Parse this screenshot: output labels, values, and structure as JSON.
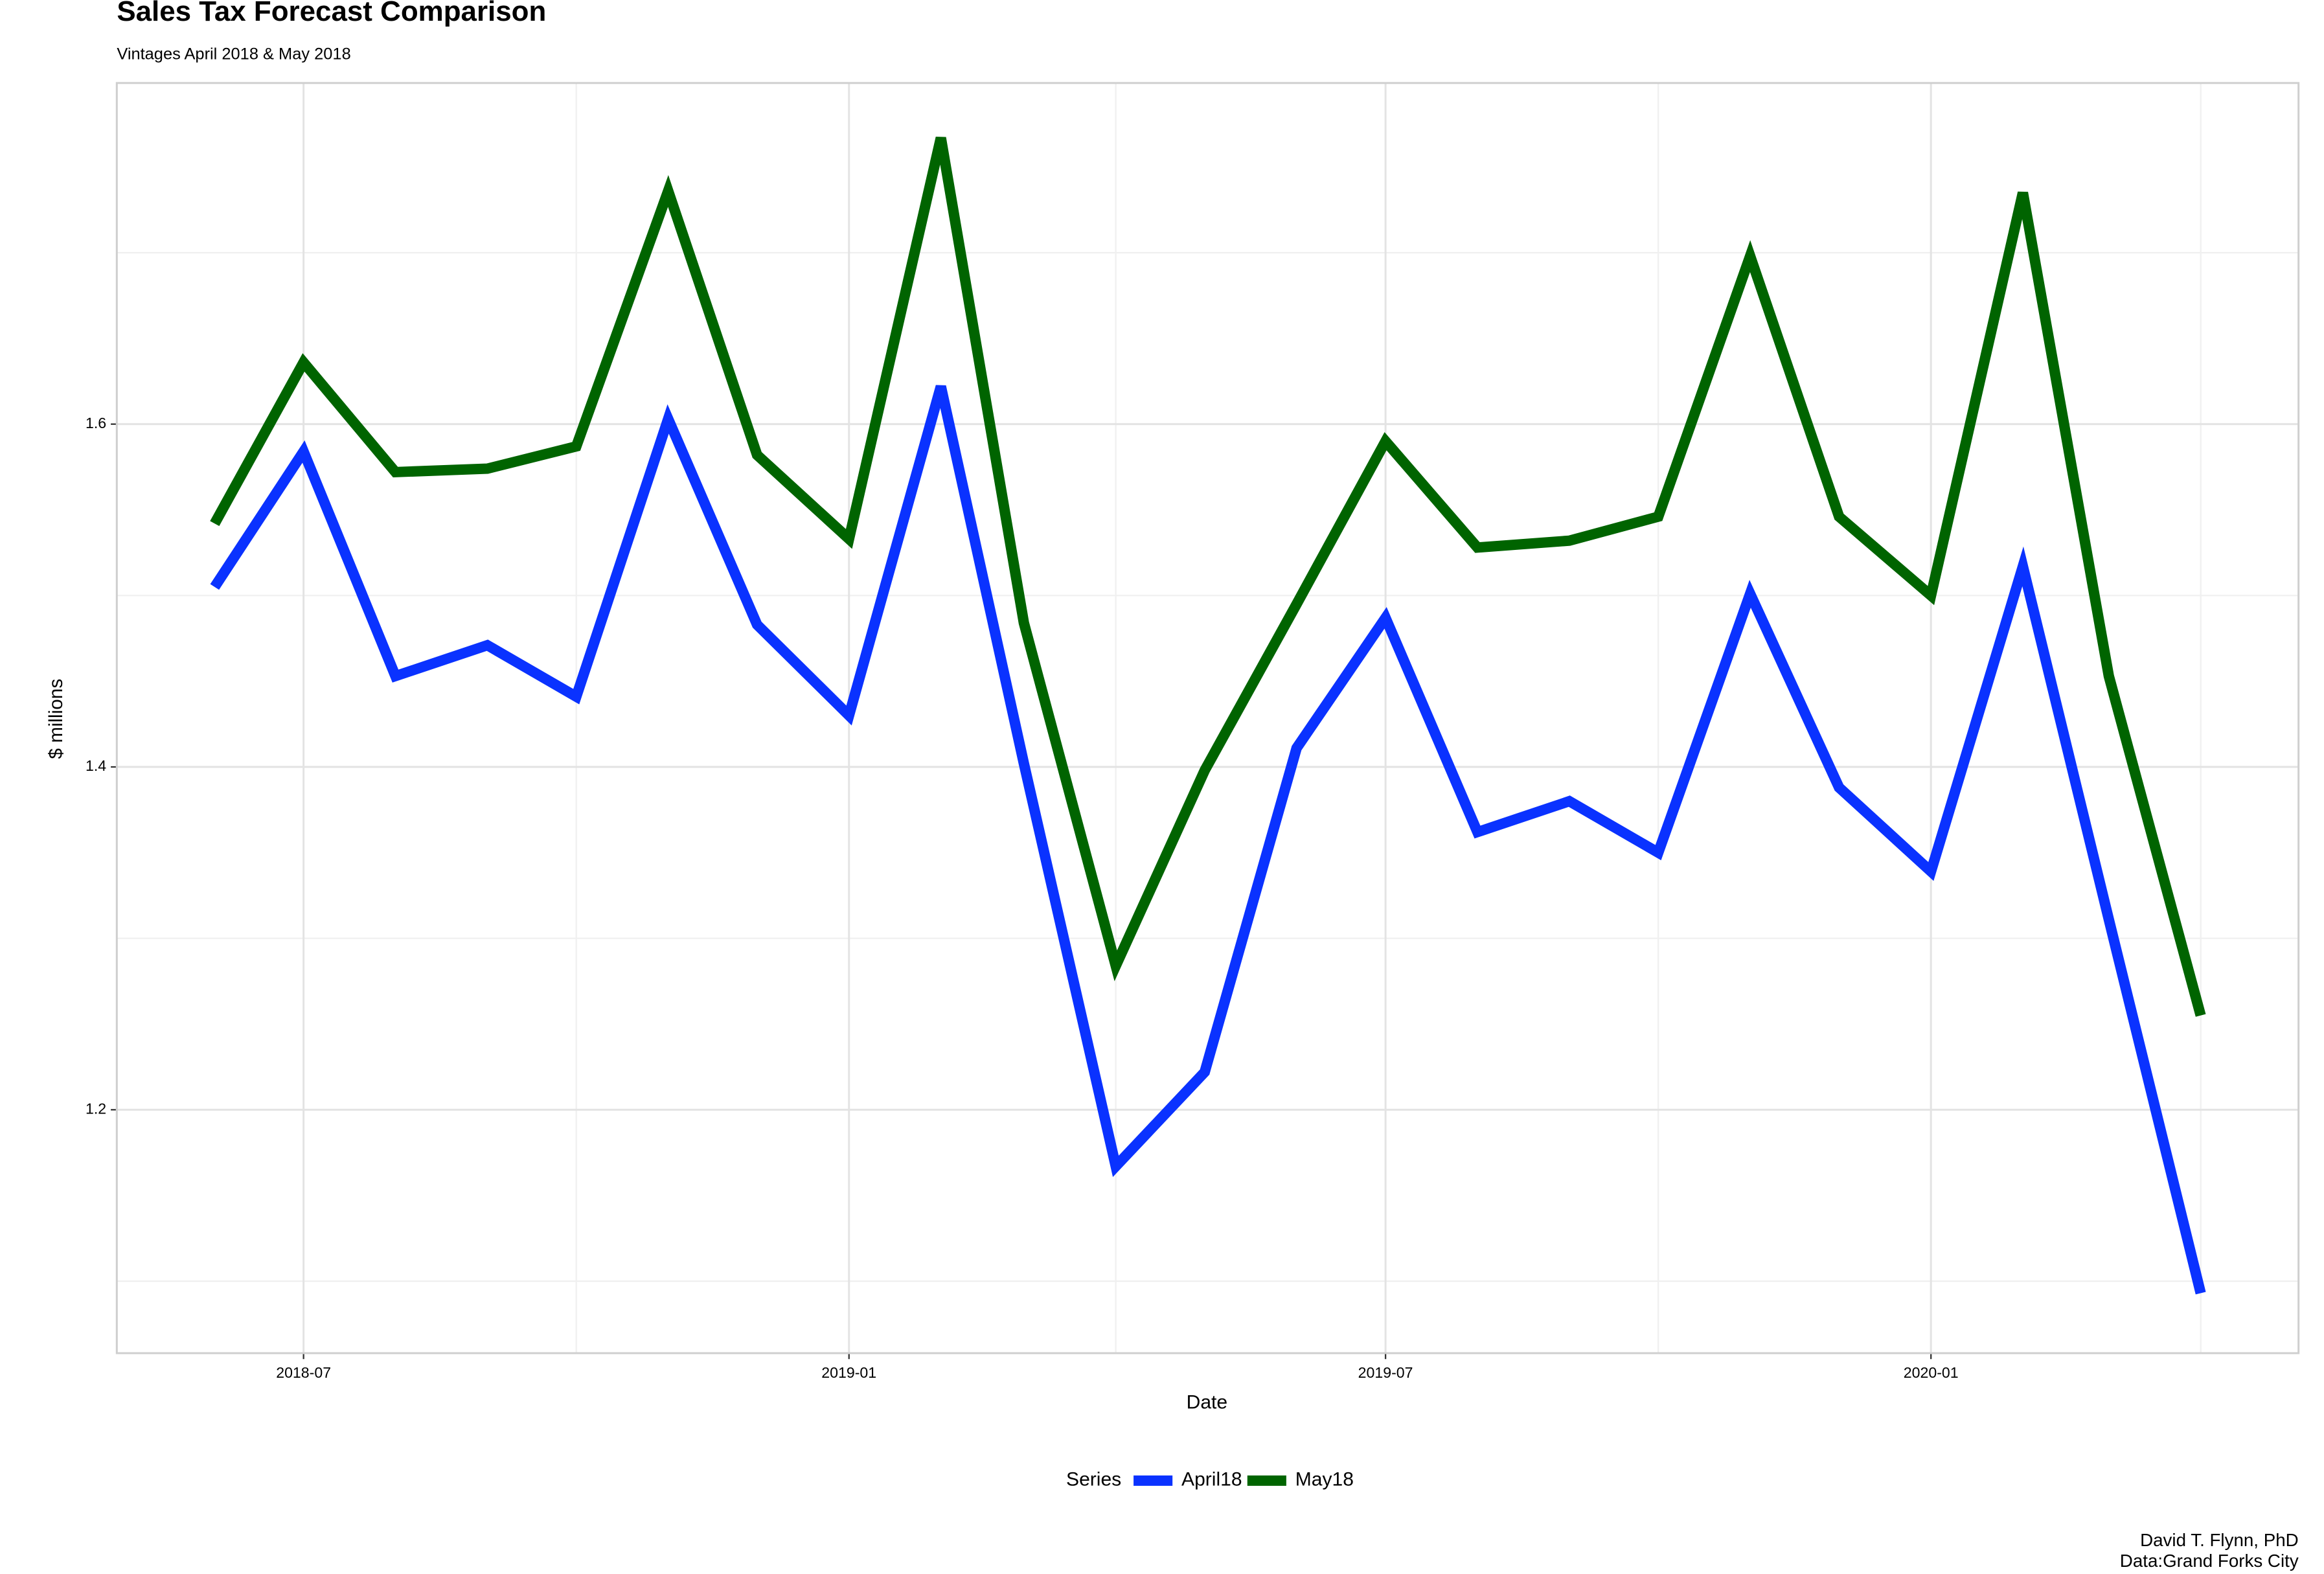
{
  "chart_data": {
    "type": "line",
    "title": "Sales Tax Forecast Comparison",
    "subtitle": "Vintages April 2018 & May 2018",
    "x_label": "Date",
    "y_label": "$ millions",
    "legend_title": "Series",
    "caption": [
      "David T. Flynn, PhD",
      "Data:Grand Forks City"
    ],
    "x": [
      "2018-06",
      "2018-07",
      "2018-08",
      "2018-09",
      "2018-10",
      "2018-11",
      "2018-12",
      "2019-01",
      "2019-02",
      "2019-03",
      "2019-04",
      "2019-05",
      "2019-06",
      "2019-07",
      "2019-08",
      "2019-09",
      "2019-10",
      "2019-11",
      "2019-12",
      "2020-01",
      "2020-02",
      "2020-03",
      "2020-04"
    ],
    "series": [
      {
        "name": "April18",
        "color": "#0a32ff",
        "values": [
          1.505,
          1.584,
          1.453,
          1.471,
          1.441,
          1.603,
          1.483,
          1.43,
          1.622,
          1.402,
          1.167,
          1.222,
          1.411,
          1.487,
          1.362,
          1.38,
          1.35,
          1.501,
          1.388,
          1.339,
          1.517,
          1.311,
          1.093
        ]
      },
      {
        "name": "May18",
        "color": "#006400",
        "values": [
          1.542,
          1.636,
          1.572,
          1.574,
          1.587,
          1.736,
          1.582,
          1.533,
          1.767,
          1.484,
          1.284,
          1.398,
          1.495,
          1.59,
          1.528,
          1.532,
          1.546,
          1.698,
          1.546,
          1.5,
          1.735,
          1.453,
          1.255
        ]
      }
    ],
    "xlim": [
      "2018-04-29",
      "2020-05-04"
    ],
    "xticks": [
      "2018-07",
      "2019-01",
      "2019-07",
      "2020-01"
    ],
    "xminorticks": [
      "2018-10",
      "2019-04",
      "2019-10",
      "2020-04"
    ],
    "ylim": [
      1.058,
      1.799
    ],
    "yticks": [
      1.2,
      1.4,
      1.6
    ],
    "yminorticks": [
      1.1,
      1.3,
      1.5,
      1.7
    ],
    "grid": true,
    "legend": "bottom"
  }
}
